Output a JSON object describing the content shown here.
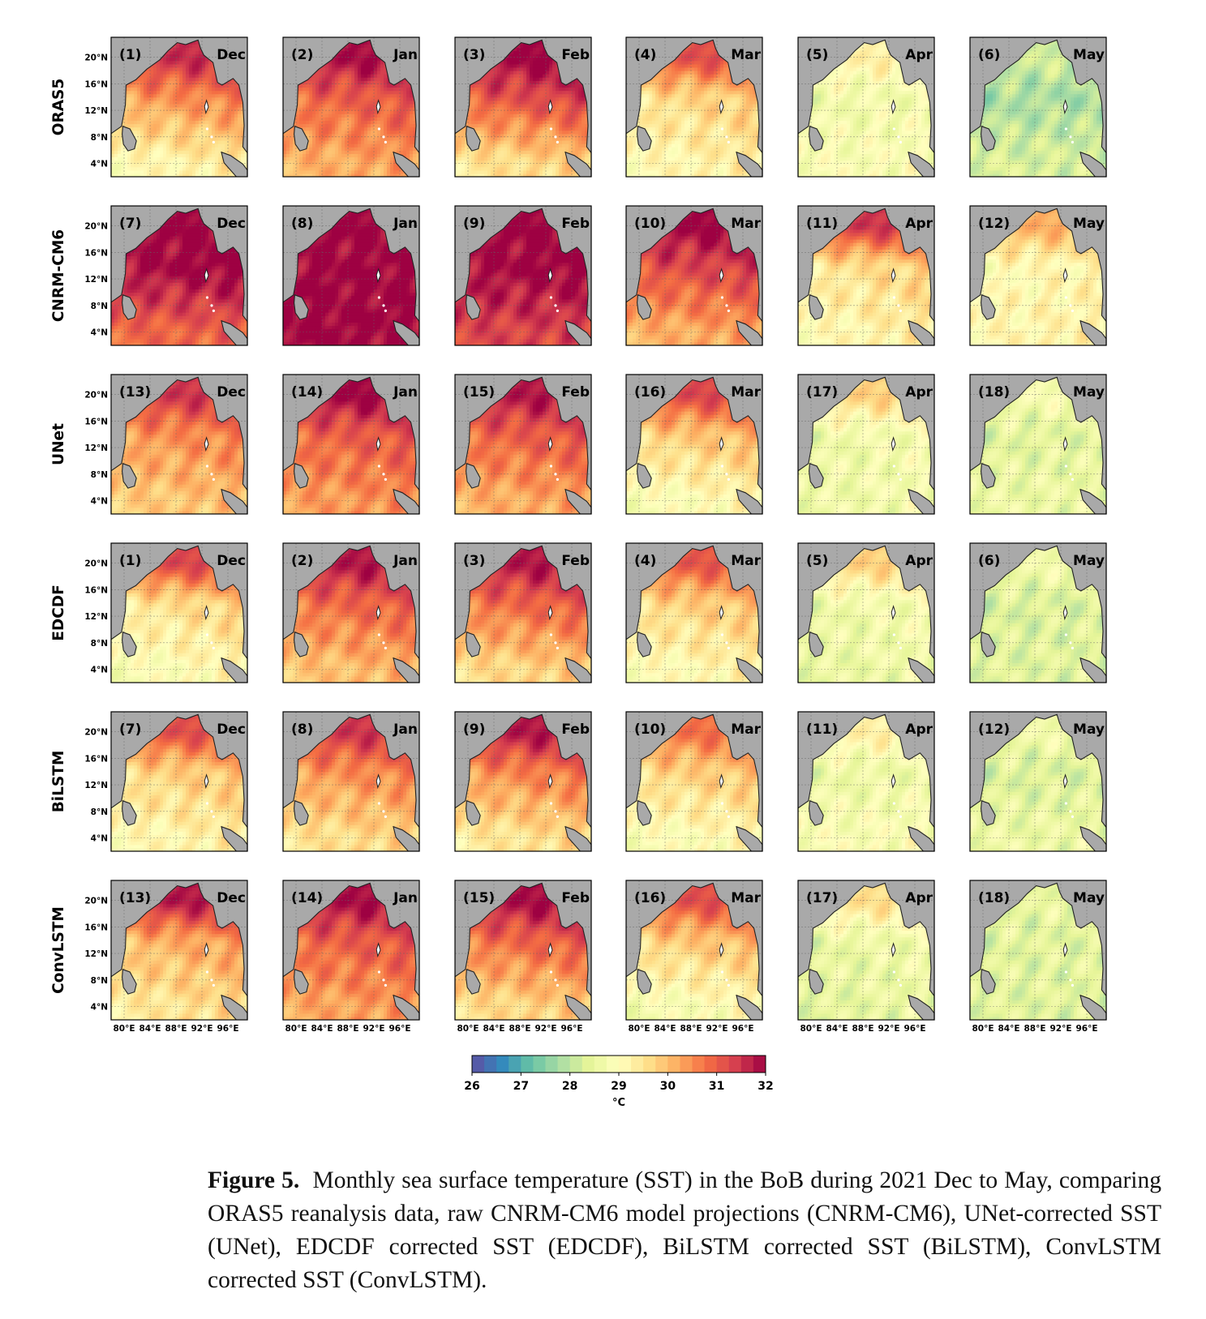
{
  "figure": {
    "rows": [
      "ORAS5",
      "CNRM-CM6",
      "UNet",
      "EDCDF",
      "BiLSTM",
      "ConvLSTM"
    ],
    "months": [
      "Dec",
      "Jan",
      "Feb",
      "Mar",
      "Apr",
      "May"
    ],
    "panel_labels": [
      [
        "(1)",
        "(2)",
        "(3)",
        "(4)",
        "(5)",
        "(6)"
      ],
      [
        "(7)",
        "(8)",
        "(9)",
        "(10)",
        "(11)",
        "(12)"
      ],
      [
        "(13)",
        "(14)",
        "(15)",
        "(16)",
        "(17)",
        "(18)"
      ],
      [
        "(1)",
        "(2)",
        "(3)",
        "(4)",
        "(5)",
        "(6)"
      ],
      [
        "(7)",
        "(8)",
        "(9)",
        "(10)",
        "(11)",
        "(12)"
      ],
      [
        "(13)",
        "(14)",
        "(15)",
        "(16)",
        "(17)",
        "(18)"
      ]
    ],
    "lat_ticks": [
      "4°N",
      "8°N",
      "12°N",
      "16°N",
      "20°N"
    ],
    "lon_ticks": [
      "80°E",
      "84°E",
      "88°E",
      "92°E",
      "96°E"
    ]
  },
  "chart_data": {
    "type": "heatmap",
    "title": "",
    "variable": "Monthly sea surface temperature (SST), Bay of Bengal, 2021 Dec to May",
    "xlabel": "",
    "ylabel": "",
    "xlim": [
      78,
      99
    ],
    "ylim": [
      2,
      23
    ],
    "land_color": "#a9a9a9",
    "grid": true,
    "colorbar": {
      "ticks": [
        26,
        27,
        28,
        29,
        30,
        31,
        32
      ],
      "unit": "°C",
      "range": [
        26,
        32
      ],
      "colormap": "Spectral_r",
      "colors": [
        "#5e4fa2",
        "#3288bd",
        "#66c2a5",
        "#abdda4",
        "#e6f598",
        "#ffffbf",
        "#fee08b",
        "#fdae61",
        "#f46d43",
        "#d53e4f",
        "#9e0142"
      ]
    },
    "approx_sst_north_mid_south": {
      "ORAS5": {
        "Dec": [
          31.6,
          30.5,
          29.2
        ],
        "Jan": [
          31.9,
          31.0,
          30.2
        ],
        "Feb": [
          32.0,
          31.2,
          29.6
        ],
        "Mar": [
          31.2,
          29.7,
          29.2
        ],
        "Apr": [
          29.3,
          28.7,
          28.9
        ],
        "May": [
          28.2,
          27.8,
          28.3
        ]
      },
      "CNRM-CM6": {
        "Dec": [
          32.0,
          32.0,
          30.9
        ],
        "Jan": [
          32.0,
          32.0,
          32.0
        ],
        "Feb": [
          32.0,
          32.0,
          31.3
        ],
        "Mar": [
          32.0,
          31.3,
          30.2
        ],
        "Apr": [
          31.5,
          29.6,
          29.2
        ],
        "May": [
          30.2,
          29.1,
          29.2
        ]
      },
      "UNet": {
        "Dec": [
          31.5,
          30.5,
          29.9
        ],
        "Jan": [
          32.0,
          31.0,
          30.4
        ],
        "Feb": [
          31.8,
          31.0,
          30.2
        ],
        "Mar": [
          31.3,
          29.9,
          29.0
        ],
        "Apr": [
          29.8,
          28.7,
          28.7
        ],
        "May": [
          28.8,
          28.4,
          28.6
        ]
      },
      "EDCDF": {
        "Dec": [
          31.3,
          29.6,
          29.0
        ],
        "Jan": [
          31.8,
          30.9,
          30.0
        ],
        "Feb": [
          31.8,
          30.9,
          29.7
        ],
        "Mar": [
          31.1,
          29.8,
          29.1
        ],
        "Apr": [
          29.8,
          28.7,
          28.6
        ],
        "May": [
          28.7,
          28.3,
          28.4
        ]
      },
      "BiLSTM": {
        "Dec": [
          31.2,
          29.8,
          29.2
        ],
        "Jan": [
          31.5,
          30.5,
          29.6
        ],
        "Feb": [
          31.8,
          30.6,
          29.5
        ],
        "Mar": [
          30.8,
          29.8,
          29.0
        ],
        "Apr": [
          29.3,
          28.6,
          28.9
        ],
        "May": [
          28.7,
          28.3,
          28.6
        ]
      },
      "ConvLSTM": {
        "Dec": [
          31.8,
          30.2,
          29.5
        ],
        "Jan": [
          31.9,
          31.0,
          30.3
        ],
        "Feb": [
          31.9,
          30.9,
          29.7
        ],
        "Mar": [
          31.2,
          29.9,
          28.9
        ],
        "Apr": [
          29.6,
          28.6,
          28.5
        ],
        "May": [
          28.5,
          28.4,
          28.4
        ]
      }
    }
  },
  "caption": {
    "label": "Figure 5.",
    "text": "Monthly sea surface temperature (SST) in the BoB during 2021 Dec to May, comparing ORAS5 reanalysis data, raw CNRM-CM6 model projections (CNRM-CM6), UNet-corrected SST (UNet), EDCDF corrected SST (EDCDF), BiLSTM corrected SST (BiLSTM), ConvLSTM corrected SST (ConvLSTM)."
  }
}
